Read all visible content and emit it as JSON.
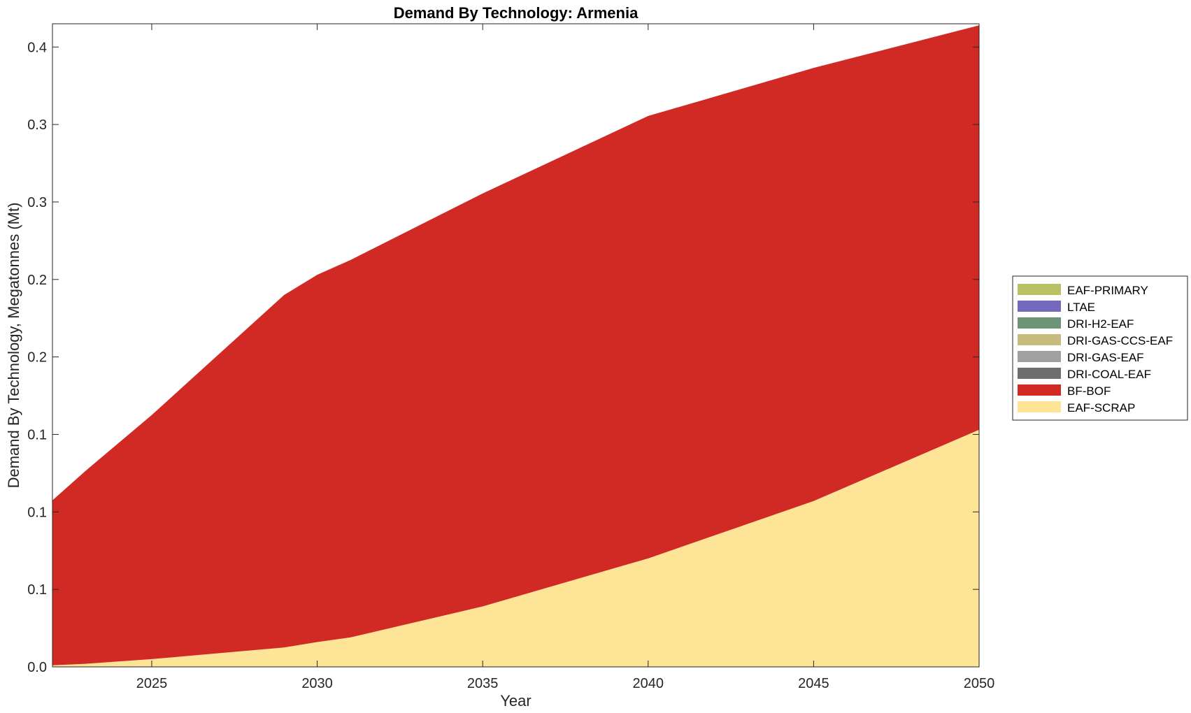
{
  "chart_data": {
    "type": "area",
    "stacked": true,
    "title": "Demand By Technology: Armenia",
    "xlabel": "Year",
    "ylabel": "Demand By Technology, Megatonnes (Mt)",
    "xlim": [
      2022,
      2050
    ],
    "ylim": [
      0,
      0.415
    ],
    "x_ticks": [
      2025,
      2030,
      2035,
      2040,
      2045,
      2050
    ],
    "y_ticks": [
      0,
      0.05,
      0.1,
      0.15,
      0.2,
      0.25,
      0.3,
      0.35,
      0.4
    ],
    "y_tick_labels": [
      "0.0",
      "0.1",
      "0.1",
      "0.1",
      "0.2",
      "0.2",
      "0.3",
      "0.3",
      "0.4"
    ],
    "grid": false,
    "legend_position": "right",
    "x": [
      2022,
      2023,
      2025,
      2029,
      2030,
      2031,
      2035,
      2040,
      2045,
      2050
    ],
    "series": [
      {
        "name": "EAF-SCRAP",
        "color": "#FEE496",
        "values": [
          0.001,
          0.002,
          0.005,
          0.0125,
          0.016,
          0.019,
          0.039,
          0.07,
          0.107,
          0.153
        ]
      },
      {
        "name": "BF-BOF",
        "color": "#D12A25",
        "values": [
          0.1065,
          0.1245,
          0.1575,
          0.2275,
          0.237,
          0.2435,
          0.2665,
          0.2855,
          0.2795,
          0.261
        ]
      },
      {
        "name": "DRI-COAL-EAF",
        "color": "#6E6E6E",
        "values": [
          0,
          0,
          0,
          0,
          0,
          0,
          0,
          0,
          0,
          0
        ]
      },
      {
        "name": "DRI-GAS-EAF",
        "color": "#A0A0A0",
        "values": [
          0,
          0,
          0,
          0,
          0,
          0,
          0,
          0,
          0,
          0
        ]
      },
      {
        "name": "DRI-GAS-CCS-EAF",
        "color": "#C6BC7E",
        "values": [
          0,
          0,
          0,
          0,
          0,
          0,
          0,
          0,
          0,
          0
        ]
      },
      {
        "name": "DRI-H2-EAF",
        "color": "#6E9478",
        "values": [
          0,
          0,
          0,
          0,
          0,
          0,
          0,
          0,
          0,
          0
        ]
      },
      {
        "name": "LTAE",
        "color": "#7569BC",
        "values": [
          0,
          0,
          0,
          0,
          0,
          0,
          0,
          0,
          0,
          0
        ]
      },
      {
        "name": "EAF-PRIMARY",
        "color": "#BAC165",
        "values": [
          0,
          0,
          0,
          0,
          0,
          0,
          0,
          0,
          0,
          0
        ]
      }
    ],
    "legend_order": [
      "EAF-PRIMARY",
      "LTAE",
      "DRI-H2-EAF",
      "DRI-GAS-CCS-EAF",
      "DRI-GAS-EAF",
      "DRI-COAL-EAF",
      "BF-BOF",
      "EAF-SCRAP"
    ]
  }
}
